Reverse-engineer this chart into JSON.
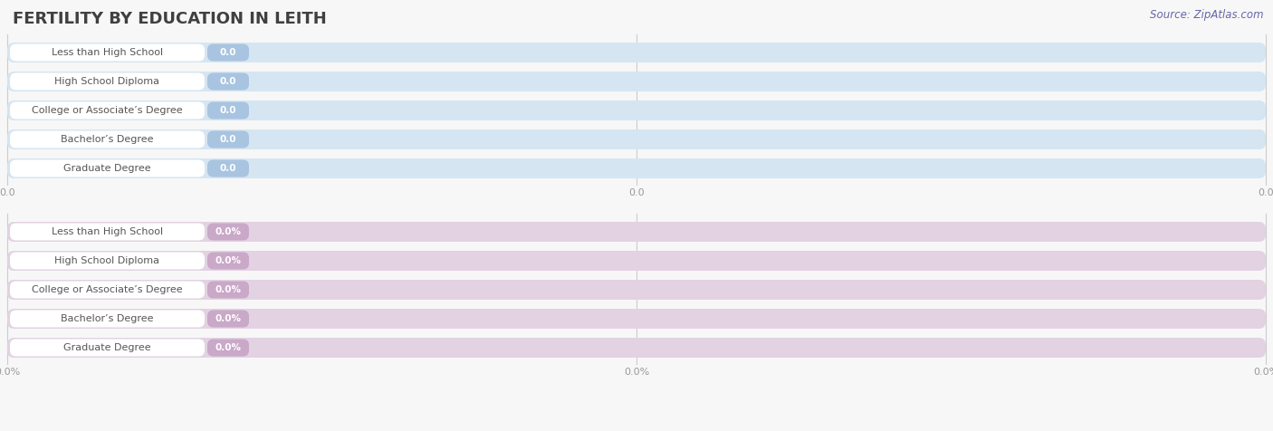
{
  "title": "FERTILITY BY EDUCATION IN LEITH",
  "source": "Source: ZipAtlas.com",
  "categories": [
    "Less than High School",
    "High School Diploma",
    "College or Associate’s Degree",
    "Bachelor’s Degree",
    "Graduate Degree"
  ],
  "top_values": [
    0.0,
    0.0,
    0.0,
    0.0,
    0.0
  ],
  "bottom_values": [
    0.0,
    0.0,
    0.0,
    0.0,
    0.0
  ],
  "top_bar_fill": "#a8c4e0",
  "top_bar_bg": "#d5e5f2",
  "bottom_bar_fill": "#c9a8c8",
  "bottom_bar_bg": "#e2d2e2",
  "fig_bg": "#f7f7f7",
  "title_color": "#404040",
  "tick_color": "#999999",
  "cat_text_color": "#555555",
  "val_text_color": "#ffffff",
  "grid_color": "#cccccc",
  "source_color": "#6666aa",
  "top_tick_labels": [
    "0.0",
    "0.0",
    "0.0"
  ],
  "bottom_tick_labels": [
    "0.0%",
    "0.0%",
    "0.0%"
  ]
}
